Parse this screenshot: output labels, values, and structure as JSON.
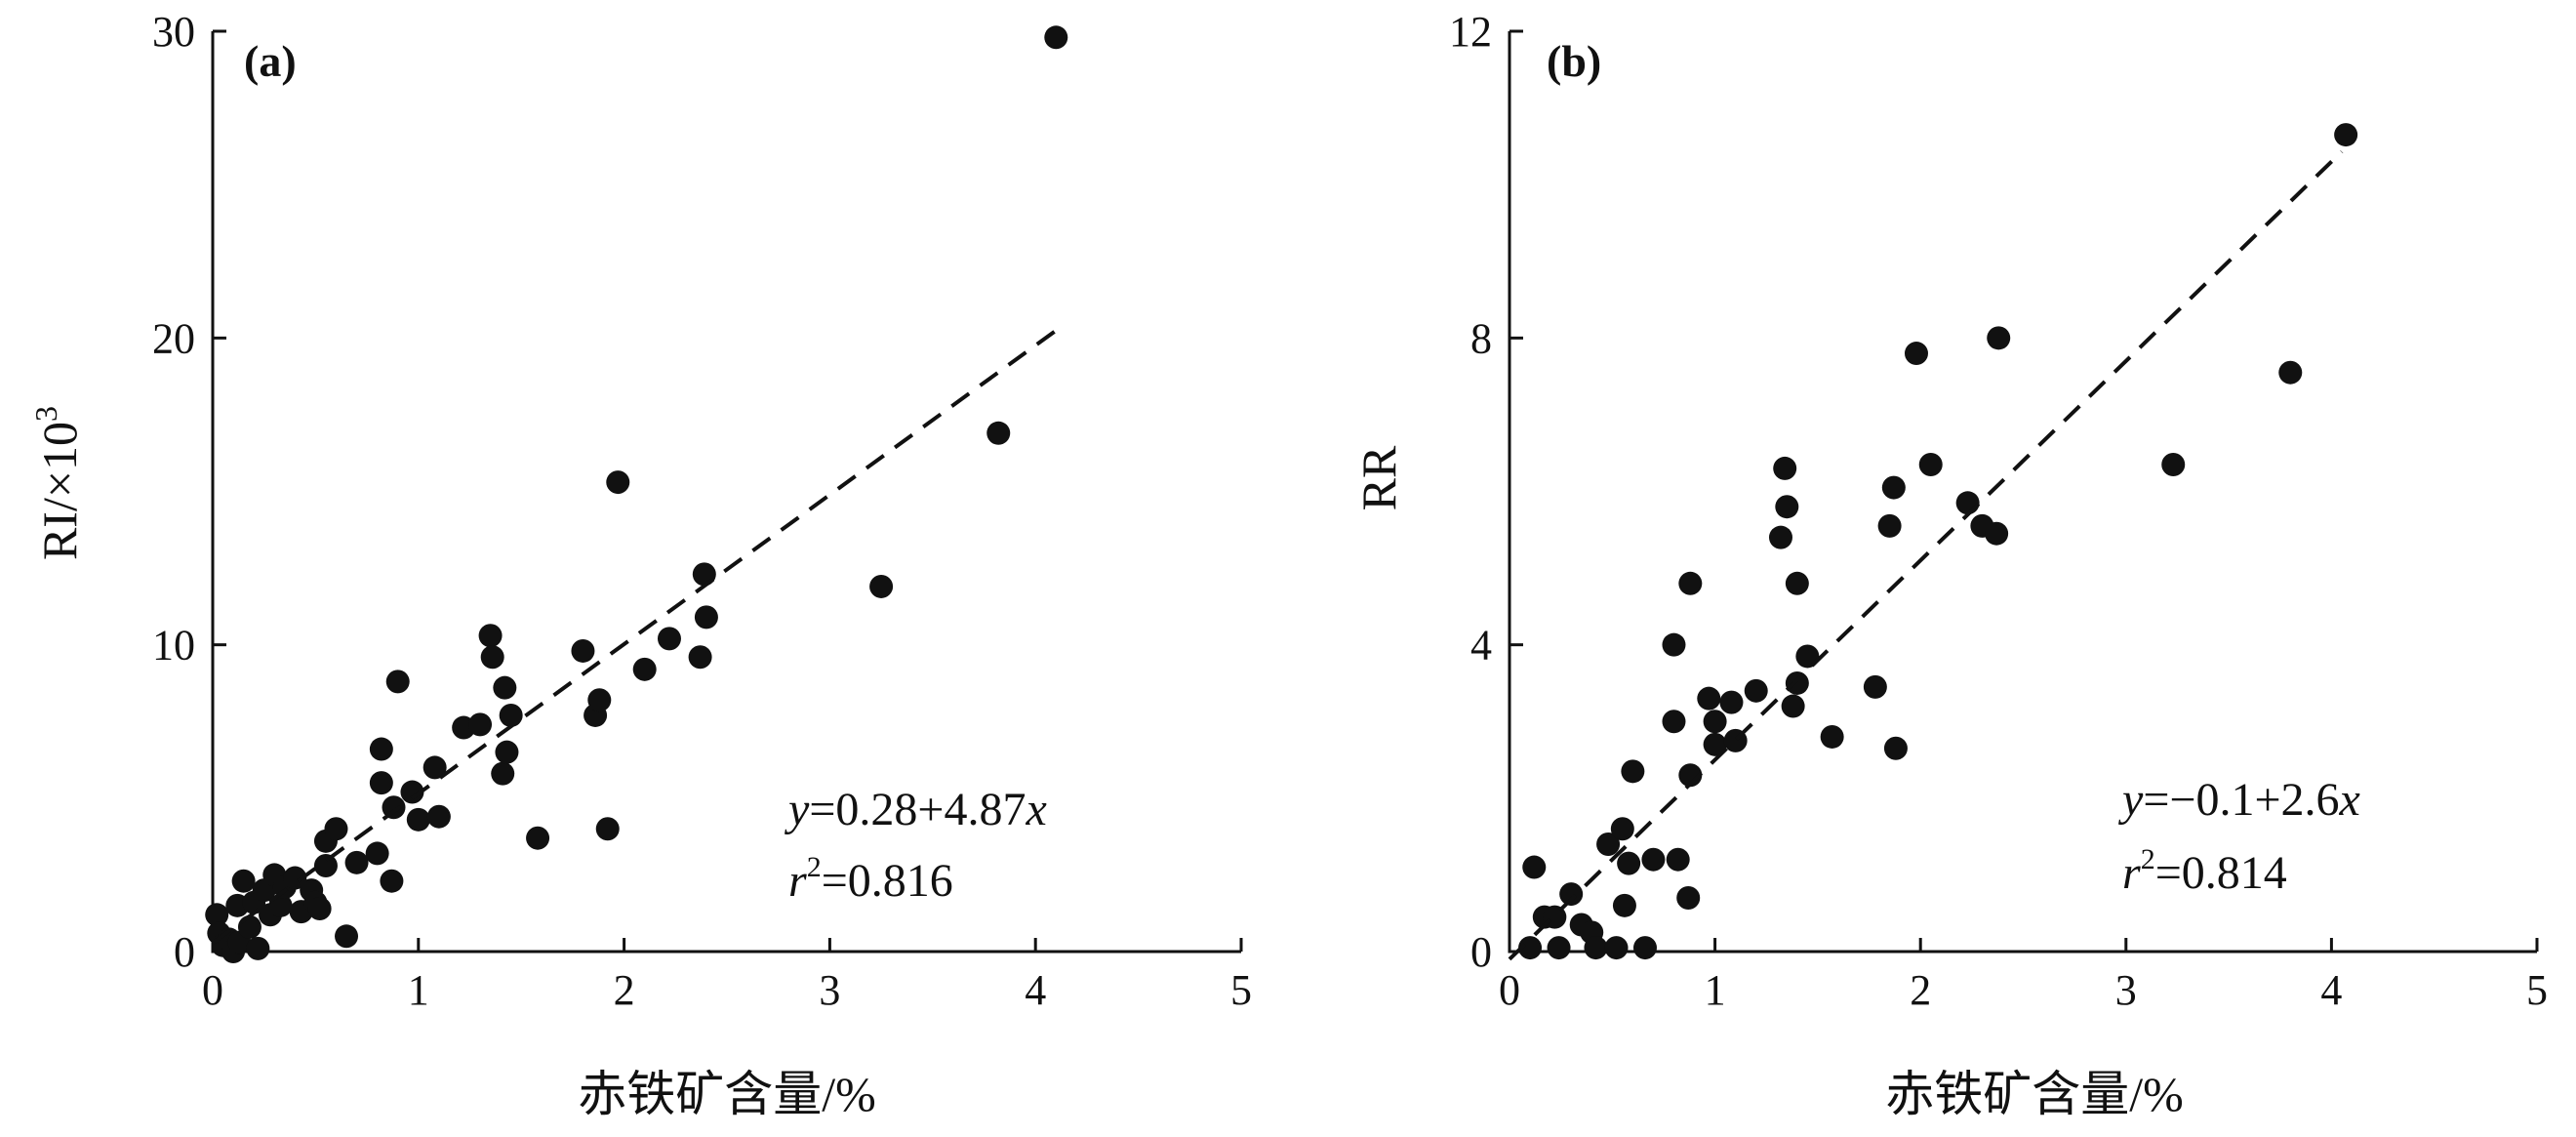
{
  "chart_data": [
    {
      "type": "scatter",
      "panel_label": "(a)",
      "xlabel": "赤铁矿含量/%",
      "ylabel_main": "RI/×10",
      "ylabel_sup": "3",
      "xlim": [
        0,
        5
      ],
      "ylim": [
        0,
        30
      ],
      "xticks": [
        "0",
        "1",
        "2",
        "3",
        "4",
        "5"
      ],
      "yticks": [
        "0",
        "10",
        "20",
        "30"
      ],
      "fit": {
        "intercept": 0.28,
        "slope": 4.87,
        "x_range": [
          0,
          4.1
        ],
        "style": "dashed"
      },
      "equation": {
        "y_var": "y",
        "x_var": "x",
        "body": "=0.28+4.87",
        "r_var": "r",
        "r_sup": "2",
        "r_value": "=0.816"
      },
      "points": [
        {
          "x": 0.02,
          "y": 1.2
        },
        {
          "x": 0.03,
          "y": 0.6
        },
        {
          "x": 0.05,
          "y": 0.2
        },
        {
          "x": 0.08,
          "y": 0.4
        },
        {
          "x": 0.1,
          "y": 0.0
        },
        {
          "x": 0.12,
          "y": 1.5
        },
        {
          "x": 0.13,
          "y": 0.3
        },
        {
          "x": 0.15,
          "y": 2.3
        },
        {
          "x": 0.18,
          "y": 0.8
        },
        {
          "x": 0.2,
          "y": 1.6
        },
        {
          "x": 0.22,
          "y": 0.1
        },
        {
          "x": 0.25,
          "y": 2.0
        },
        {
          "x": 0.28,
          "y": 1.2
        },
        {
          "x": 0.3,
          "y": 2.5
        },
        {
          "x": 0.33,
          "y": 1.5
        },
        {
          "x": 0.35,
          "y": 2.1
        },
        {
          "x": 0.4,
          "y": 2.4
        },
        {
          "x": 0.43,
          "y": 1.3
        },
        {
          "x": 0.48,
          "y": 2.0
        },
        {
          "x": 0.5,
          "y": 1.6
        },
        {
          "x": 0.52,
          "y": 1.4
        },
        {
          "x": 0.55,
          "y": 2.8
        },
        {
          "x": 0.55,
          "y": 3.6
        },
        {
          "x": 0.6,
          "y": 4.0
        },
        {
          "x": 0.65,
          "y": 0.5
        },
        {
          "x": 0.7,
          "y": 2.9
        },
        {
          "x": 0.8,
          "y": 3.2
        },
        {
          "x": 0.82,
          "y": 6.6
        },
        {
          "x": 0.82,
          "y": 5.5
        },
        {
          "x": 0.87,
          "y": 2.3
        },
        {
          "x": 0.88,
          "y": 4.7
        },
        {
          "x": 0.9,
          "y": 8.8
        },
        {
          "x": 0.97,
          "y": 5.2
        },
        {
          "x": 1.0,
          "y": 4.3
        },
        {
          "x": 1.08,
          "y": 6.0
        },
        {
          "x": 1.1,
          "y": 4.4
        },
        {
          "x": 1.22,
          "y": 7.3
        },
        {
          "x": 1.3,
          "y": 7.4
        },
        {
          "x": 1.35,
          "y": 10.3
        },
        {
          "x": 1.36,
          "y": 9.6
        },
        {
          "x": 1.41,
          "y": 5.8
        },
        {
          "x": 1.42,
          "y": 8.6
        },
        {
          "x": 1.43,
          "y": 6.5
        },
        {
          "x": 1.45,
          "y": 7.7
        },
        {
          "x": 1.58,
          "y": 3.7
        },
        {
          "x": 1.8,
          "y": 9.8
        },
        {
          "x": 1.86,
          "y": 7.7
        },
        {
          "x": 1.88,
          "y": 8.2
        },
        {
          "x": 1.92,
          "y": 4.0
        },
        {
          "x": 1.97,
          "y": 15.3
        },
        {
          "x": 2.1,
          "y": 9.2
        },
        {
          "x": 2.22,
          "y": 10.2
        },
        {
          "x": 2.37,
          "y": 9.6
        },
        {
          "x": 2.39,
          "y": 12.3
        },
        {
          "x": 2.4,
          "y": 10.9
        },
        {
          "x": 3.25,
          "y": 11.9
        },
        {
          "x": 3.82,
          "y": 16.9
        },
        {
          "x": 4.1,
          "y": 29.8
        }
      ]
    },
    {
      "type": "scatter",
      "panel_label": "(b)",
      "xlabel": "赤铁矿含量/%",
      "ylabel_main": "RR",
      "ylabel_sup": "",
      "xlim": [
        0,
        5
      ],
      "ylim": [
        0,
        12
      ],
      "xticks": [
        "0",
        "1",
        "2",
        "3",
        "4",
        "5"
      ],
      "yticks": [
        "0",
        "4",
        "8",
        "12"
      ],
      "fit": {
        "intercept": -0.1,
        "slope": 2.6,
        "x_range": [
          0,
          4.05
        ],
        "style": "dashed"
      },
      "equation": {
        "y_var": "y",
        "x_var": "x",
        "body": "=−0.1+2.6",
        "r_var": "r",
        "r_sup": "2",
        "r_value": "=0.814"
      },
      "points": [
        {
          "x": 0.1,
          "y": 0.05
        },
        {
          "x": 0.12,
          "y": 1.1
        },
        {
          "x": 0.17,
          "y": 0.45
        },
        {
          "x": 0.22,
          "y": 0.45
        },
        {
          "x": 0.24,
          "y": 0.05
        },
        {
          "x": 0.3,
          "y": 0.75
        },
        {
          "x": 0.35,
          "y": 0.35
        },
        {
          "x": 0.4,
          "y": 0.25
        },
        {
          "x": 0.42,
          "y": 0.05
        },
        {
          "x": 0.48,
          "y": 1.4
        },
        {
          "x": 0.52,
          "y": 0.05
        },
        {
          "x": 0.55,
          "y": 1.6
        },
        {
          "x": 0.56,
          "y": 0.6
        },
        {
          "x": 0.58,
          "y": 1.15
        },
        {
          "x": 0.6,
          "y": 2.35
        },
        {
          "x": 0.66,
          "y": 0.05
        },
        {
          "x": 0.7,
          "y": 1.2
        },
        {
          "x": 0.8,
          "y": 3.0
        },
        {
          "x": 0.8,
          "y": 4.0
        },
        {
          "x": 0.82,
          "y": 1.2
        },
        {
          "x": 0.87,
          "y": 0.7
        },
        {
          "x": 0.88,
          "y": 4.8
        },
        {
          "x": 0.88,
          "y": 2.3
        },
        {
          "x": 0.97,
          "y": 3.3
        },
        {
          "x": 1.0,
          "y": 3.0
        },
        {
          "x": 1.0,
          "y": 2.7
        },
        {
          "x": 1.08,
          "y": 3.25
        },
        {
          "x": 1.1,
          "y": 2.75
        },
        {
          "x": 1.2,
          "y": 3.4
        },
        {
          "x": 1.32,
          "y": 5.4
        },
        {
          "x": 1.34,
          "y": 6.3
        },
        {
          "x": 1.35,
          "y": 5.8
        },
        {
          "x": 1.38,
          "y": 3.2
        },
        {
          "x": 1.4,
          "y": 4.8
        },
        {
          "x": 1.4,
          "y": 3.5
        },
        {
          "x": 1.45,
          "y": 3.85
        },
        {
          "x": 1.57,
          "y": 2.8
        },
        {
          "x": 1.78,
          "y": 3.45
        },
        {
          "x": 1.85,
          "y": 5.55
        },
        {
          "x": 1.87,
          "y": 6.05
        },
        {
          "x": 1.88,
          "y": 2.65
        },
        {
          "x": 1.98,
          "y": 7.8
        },
        {
          "x": 2.05,
          "y": 6.35
        },
        {
          "x": 2.23,
          "y": 5.85
        },
        {
          "x": 2.3,
          "y": 5.55
        },
        {
          "x": 2.37,
          "y": 5.45
        },
        {
          "x": 2.38,
          "y": 8.0
        },
        {
          "x": 3.23,
          "y": 6.35
        },
        {
          "x": 3.8,
          "y": 7.55
        },
        {
          "x": 4.07,
          "y": 10.65
        }
      ]
    }
  ]
}
